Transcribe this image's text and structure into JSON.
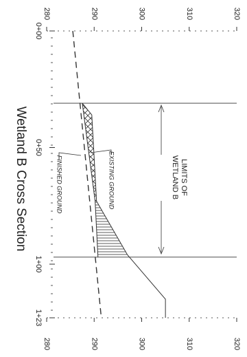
{
  "chart_data": {
    "type": "line",
    "title": "Wetland B Cross Section",
    "annotations": [
      "LIMITS OF",
      "WETLAND B",
      "EXISTING GROUND",
      "FINISHED GROUND"
    ],
    "xlim": [
      0,
      123
    ],
    "xticks": [
      {
        "value": 0,
        "label": "0+00"
      },
      {
        "value": 50,
        "label": "0+50"
      },
      {
        "value": 100,
        "label": "1+00"
      },
      {
        "value": 123,
        "label": "1+23"
      }
    ],
    "ylim": [
      280,
      320
    ],
    "yticks": [
      280,
      290,
      300,
      310,
      320
    ],
    "limits": [
      31,
      97
    ],
    "series": [
      {
        "name": "EXISTING GROUND",
        "color": "#333333",
        "x": [
          31,
          36,
          73,
          96,
          115,
          123
        ],
        "values": [
          287.5,
          289.5,
          290.5,
          297,
          305,
          305
        ]
      },
      {
        "name": "FINISHED GROUND",
        "color": "#333333",
        "x": [
          31,
          73,
          97
        ],
        "values": [
          287.5,
          290.2,
          290.8
        ]
      },
      {
        "color": "#333333",
        "dashed": true,
        "x": [
          0,
          123
        ],
        "values": [
          285.5,
          291.5
        ]
      }
    ]
  }
}
